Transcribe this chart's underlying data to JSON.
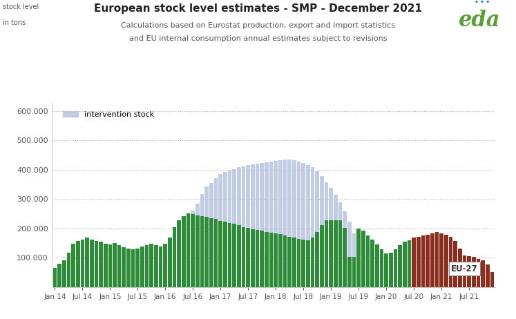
{
  "title": "European stock level estimates - SMP - December 2021",
  "subtitle1": "Calculations based on Eurostat production, export and import statistics",
  "subtitle2": "and EU internal consumption annual estimates subject to revisions",
  "ylim": [
    0,
    630000
  ],
  "yticks": [
    0,
    100000,
    200000,
    300000,
    400000,
    500000,
    600000
  ],
  "bar_color_green": "#2e8b3a",
  "bar_color_red": "#8b2e22",
  "intervention_color": "#b8c4e0",
  "intervention_alpha": 0.85,
  "legend_intervention": "intervention stock",
  "eu27_label": "EU-27",
  "eu27_start_index": 78,
  "xtick_positions": [
    0,
    6,
    12,
    18,
    24,
    30,
    36,
    42,
    48,
    54,
    60,
    66,
    72,
    78,
    84,
    90
  ],
  "xtick_labels": [
    "Jan 14",
    "Jul 14",
    "Jan 15",
    "Jul 15",
    "Jan 16",
    "Jul 16",
    "Jan 17",
    "Jul 17",
    "Jan 18",
    "Jul 18",
    "Jan 19",
    "Jul 19",
    "Jan 20",
    "Jul 20",
    "Jan 21",
    "Jul 21"
  ],
  "values": [
    65000,
    80000,
    92000,
    118000,
    148000,
    158000,
    162000,
    168000,
    162000,
    158000,
    155000,
    148000,
    145000,
    150000,
    143000,
    135000,
    132000,
    128000,
    132000,
    138000,
    143000,
    148000,
    143000,
    138000,
    148000,
    168000,
    205000,
    228000,
    242000,
    252000,
    248000,
    245000,
    242000,
    240000,
    235000,
    232000,
    225000,
    222000,
    218000,
    215000,
    210000,
    205000,
    202000,
    198000,
    195000,
    192000,
    188000,
    185000,
    182000,
    180000,
    175000,
    172000,
    168000,
    165000,
    162000,
    160000,
    168000,
    188000,
    210000,
    228000,
    228000,
    228000,
    228000,
    202000,
    102000,
    102000,
    200000,
    192000,
    175000,
    162000,
    145000,
    128000,
    115000,
    118000,
    128000,
    142000,
    155000,
    160000,
    168000,
    172000,
    175000,
    178000,
    182000,
    188000,
    182000,
    178000,
    172000,
    158000,
    132000,
    108000,
    105000,
    102000,
    95000,
    92000,
    78000,
    52000
  ],
  "intervention_values": [
    0,
    0,
    0,
    0,
    0,
    0,
    0,
    0,
    0,
    0,
    0,
    0,
    0,
    0,
    0,
    0,
    0,
    0,
    0,
    0,
    0,
    0,
    0,
    0,
    0,
    0,
    0,
    0,
    0,
    0,
    260000,
    285000,
    318000,
    342000,
    355000,
    370000,
    385000,
    392000,
    398000,
    402000,
    408000,
    412000,
    415000,
    418000,
    420000,
    422000,
    425000,
    428000,
    430000,
    432000,
    435000,
    435000,
    432000,
    428000,
    422000,
    415000,
    408000,
    395000,
    378000,
    358000,
    338000,
    315000,
    288000,
    258000,
    222000,
    182000,
    0,
    0,
    0,
    0,
    0,
    0,
    0,
    0,
    0,
    0,
    0,
    0,
    0,
    0,
    0,
    0,
    0,
    0,
    0,
    0,
    0,
    0,
    0,
    0,
    0,
    0,
    0,
    0,
    0,
    0
  ]
}
